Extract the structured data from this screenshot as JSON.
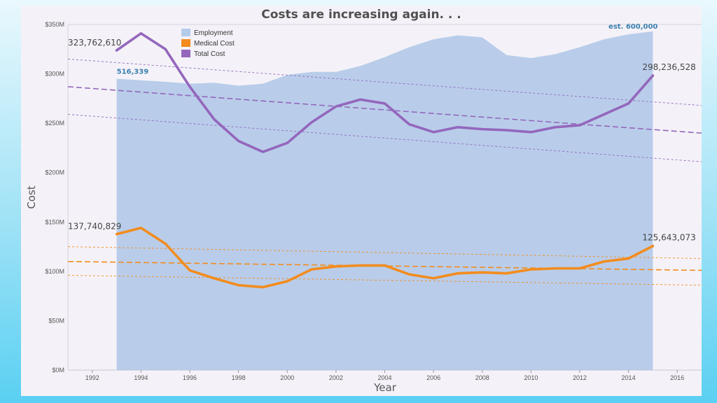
{
  "chart_data": {
    "type": "line",
    "title": "Costs are increasing again. . .",
    "xlabel": "Year",
    "ylabel": "Cost",
    "xlim": [
      1991,
      2017
    ],
    "ylim": [
      0,
      350000000
    ],
    "x_ticks": [
      1992,
      1994,
      1996,
      1998,
      2000,
      2002,
      2004,
      2006,
      2008,
      2010,
      2012,
      2014,
      2016
    ],
    "y_ticks": [
      {
        "value": 0,
        "label": "$0M"
      },
      {
        "value": 50000000,
        "label": "$50M"
      },
      {
        "value": 100000000,
        "label": "$100M"
      },
      {
        "value": 150000000,
        "label": "$150M"
      },
      {
        "value": 200000000,
        "label": "$200M"
      },
      {
        "value": 250000000,
        "label": "$250M"
      },
      {
        "value": 300000000,
        "label": "$300M"
      },
      {
        "value": 350000000,
        "label": "$350M"
      }
    ],
    "grid": false,
    "legend_position": "top-left",
    "x": [
      1993,
      1994,
      1995,
      1996,
      1997,
      1998,
      1999,
      2000,
      2001,
      2002,
      2003,
      2004,
      2005,
      2006,
      2007,
      2008,
      2009,
      2010,
      2011,
      2012,
      2013,
      2014,
      2015
    ],
    "series": [
      {
        "name": "Employment",
        "kind": "area",
        "color": "#aec7e8",
        "values": [
          295000000,
          293500000,
          292000000,
          290000000,
          291000000,
          288000000,
          290000000,
          299000000,
          302000000,
          302000000,
          308000000,
          317000000,
          327000000,
          335000000,
          339000000,
          337000000,
          319000000,
          316000000,
          320000000,
          327000000,
          335000000,
          340000000,
          343000000
        ]
      },
      {
        "name": "Medical Cost",
        "kind": "line",
        "color": "#f28c1e",
        "values": [
          137740829,
          144000000,
          128000000,
          101000000,
          93000000,
          86000000,
          84000000,
          90000000,
          102000000,
          105000000,
          106000000,
          106000000,
          97000000,
          93000000,
          98000000,
          99000000,
          98000000,
          102000000,
          103000000,
          103000000,
          110000000,
          113000000,
          125643073
        ]
      },
      {
        "name": "Total Cost",
        "kind": "line",
        "color": "#9467bd",
        "values": [
          323762610,
          341000000,
          325000000,
          287000000,
          254000000,
          232000000,
          221000000,
          230000000,
          251000000,
          267000000,
          274000000,
          270000000,
          249000000,
          241000000,
          246000000,
          244000000,
          243000000,
          241000000,
          246000000,
          248000000,
          259000000,
          270000000,
          298236528
        ]
      }
    ],
    "trend_lines": [
      {
        "series": "Total Cost",
        "kind": "trend",
        "x": [
          1991,
          2017
        ],
        "y": [
          287000000,
          240000000
        ]
      },
      {
        "series": "Total Cost",
        "kind": "band",
        "x": [
          1991,
          2017
        ],
        "y": [
          315000000,
          268000000
        ]
      },
      {
        "series": "Total Cost",
        "kind": "band",
        "x": [
          1991,
          2017
        ],
        "y": [
          259000000,
          211000000
        ]
      },
      {
        "series": "Medical Cost",
        "kind": "trend",
        "x": [
          1991,
          2017
        ],
        "y": [
          110000000,
          101000000
        ]
      },
      {
        "series": "Medical Cost",
        "kind": "band",
        "x": [
          1991,
          2017
        ],
        "y": [
          125000000,
          113000000
        ]
      },
      {
        "series": "Medical Cost",
        "kind": "band",
        "x": [
          1991,
          2017
        ],
        "y": [
          96000000,
          86000000
        ]
      }
    ],
    "data_labels": [
      {
        "text": "323,762,610",
        "series": "Total Cost",
        "x": 1993
      },
      {
        "text": "298,236,528",
        "series": "Total Cost",
        "x": 2015
      },
      {
        "text": "137,740,829",
        "series": "Medical Cost",
        "x": 1993
      },
      {
        "text": "125,643,073",
        "series": "Medical Cost",
        "x": 2015
      },
      {
        "text": "516,339",
        "series": "Employment",
        "x": 1993
      },
      {
        "text": "est. 600,000",
        "series": "Employment",
        "x": 2015
      }
    ]
  }
}
